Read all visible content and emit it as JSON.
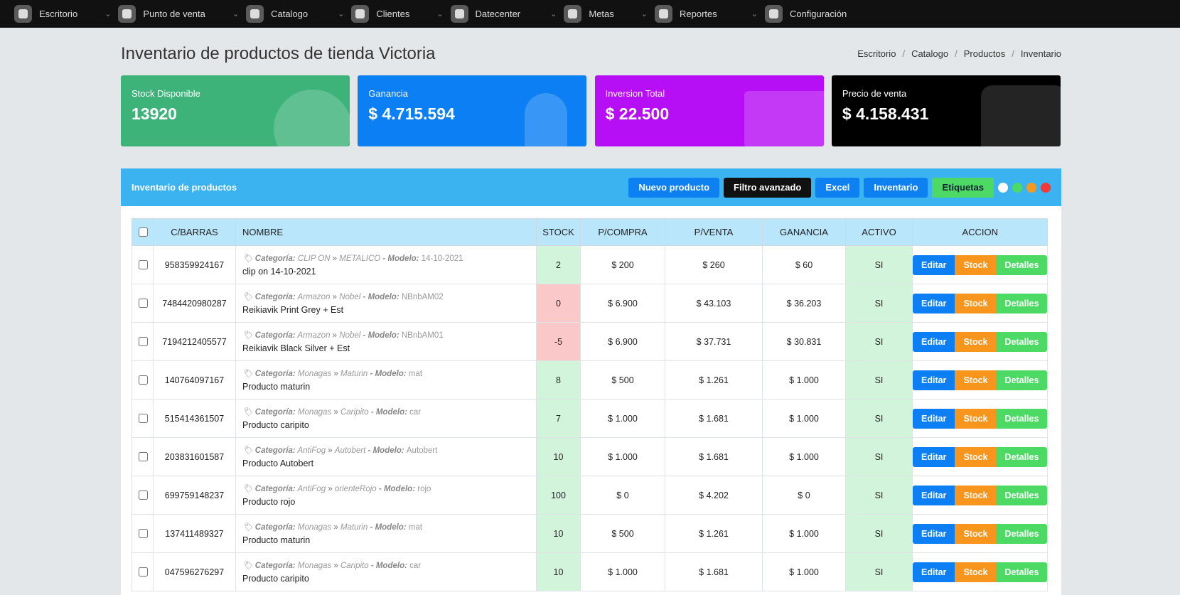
{
  "nav": [
    "Escritorio",
    "Punto de venta",
    "Catalogo",
    "Clientes",
    "Datecenter",
    "Metas",
    "Reportes",
    "Configuración"
  ],
  "header": {
    "title": "Inventario de productos de tienda Victoria",
    "breadcrumb": [
      "Escritorio",
      "Catalogo",
      "Productos",
      "Inventario"
    ]
  },
  "cards": [
    {
      "label": "Stock Disponible",
      "value": "13920"
    },
    {
      "label": "Ganancia",
      "value": "$ 4.715.594"
    },
    {
      "label": "Inversion Total",
      "value": "$ 22.500"
    },
    {
      "label": "Precio de venta",
      "value": "$ 4.158.431"
    }
  ],
  "panel": {
    "title": "Inventario de productos",
    "buttons": [
      "Nuevo producto",
      "Filtro avanzado",
      "Excel",
      "Inventario",
      "Etiquetas"
    ]
  },
  "table": {
    "columns": [
      "C/BARRAS",
      "NOMBRE",
      "STOCK",
      "P/COMPRA",
      "P/VENTA",
      "GANANCIA",
      "ACTIVO",
      "ACCION"
    ],
    "category_label": "Categoría:",
    "model_label": "- Modelo:",
    "actions": [
      "Editar",
      "Stock",
      "Detalles"
    ],
    "rows": [
      {
        "barcode": "958359924167",
        "category": "CLIP ON",
        "subcategory": "METALICO",
        "model": "14-10-2021",
        "name": "clip on 14-10-2021",
        "stock": "2",
        "buy": "$ 200",
        "sell": "$ 260",
        "profit": "$ 60",
        "active": "SI"
      },
      {
        "barcode": "7484420980287",
        "category": "Armazon",
        "subcategory": "Nobel",
        "model": "NBnbAM02",
        "name": "Reikiavik Print Grey + Est",
        "stock": "0",
        "buy": "$ 6.900",
        "sell": "$ 43.103",
        "profit": "$ 36.203",
        "active": "SI"
      },
      {
        "barcode": "7194212405577",
        "category": "Armazon",
        "subcategory": "Nobel",
        "model": "NBnbAM01",
        "name": "Reikiavik Black Silver + Est",
        "stock": "-5",
        "buy": "$ 6.900",
        "sell": "$ 37.731",
        "profit": "$ 30.831",
        "active": "SI"
      },
      {
        "barcode": "140764097167",
        "category": "Monagas",
        "subcategory": "Maturin",
        "model": "mat",
        "name": "Producto maturin",
        "stock": "8",
        "buy": "$ 500",
        "sell": "$ 1.261",
        "profit": "$ 1.000",
        "active": "SI"
      },
      {
        "barcode": "515414361507",
        "category": "Monagas",
        "subcategory": "Caripito",
        "model": "car",
        "name": "Producto caripito",
        "stock": "7",
        "buy": "$ 1.000",
        "sell": "$ 1.681",
        "profit": "$ 1.000",
        "active": "SI"
      },
      {
        "barcode": "203831601587",
        "category": "AntiFog",
        "subcategory": "Autobert",
        "model": "Autobert",
        "name": "Producto Autobert",
        "stock": "10",
        "buy": "$ 1.000",
        "sell": "$ 1.681",
        "profit": "$ 1.000",
        "active": "SI"
      },
      {
        "barcode": "699759148237",
        "category": "AntiFog",
        "subcategory": "orienteRojo",
        "model": "rojo",
        "name": "Producto rojo",
        "stock": "100",
        "buy": "$ 0",
        "sell": "$ 4.202",
        "profit": "$ 0",
        "active": "SI"
      },
      {
        "barcode": "137411489327",
        "category": "Monagas",
        "subcategory": "Maturin",
        "model": "mat",
        "name": "Producto maturin",
        "stock": "10",
        "buy": "$ 500",
        "sell": "$ 1.261",
        "profit": "$ 1.000",
        "active": "SI"
      },
      {
        "barcode": "047596276297",
        "category": "Monagas",
        "subcategory": "Caripito",
        "model": "car",
        "name": "Producto caripito",
        "stock": "10",
        "buy": "$ 1.000",
        "sell": "$ 1.681",
        "profit": "$ 1.000",
        "active": "SI"
      }
    ]
  }
}
